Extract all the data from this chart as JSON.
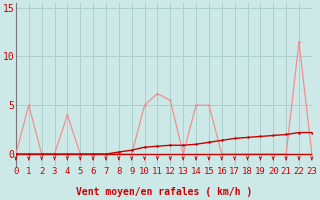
{
  "x": [
    0,
    1,
    2,
    3,
    4,
    5,
    6,
    7,
    8,
    9,
    10,
    11,
    12,
    13,
    14,
    15,
    16,
    17,
    18,
    19,
    20,
    21,
    22,
    23
  ],
  "rafales": [
    0,
    5,
    0,
    0,
    4,
    0,
    0,
    0,
    0,
    0,
    5,
    6.2,
    5.5,
    0,
    5,
    5,
    0,
    0,
    0,
    0,
    0,
    0,
    11.5,
    0
  ],
  "moyen": [
    0,
    0,
    0,
    0,
    0,
    0,
    0,
    0,
    0.2,
    0.4,
    0.7,
    0.8,
    0.9,
    0.9,
    1.0,
    1.2,
    1.4,
    1.6,
    1.7,
    1.8,
    1.9,
    2.0,
    2.2,
    2.2
  ],
  "bg_color": "#cce9e8",
  "grid_color": "#aad0ce",
  "line_color_rafales": "#f09090",
  "line_color_moyen": "#cc0000",
  "axis_line_color": "#cc0000",
  "tick_label_color": "#cc0000",
  "xlabel": "Vent moyen/en rafales ( km/h )",
  "xlabel_color": "#cc0000",
  "ylabel_ticks": [
    0,
    5,
    10,
    15
  ],
  "xlim": [
    0,
    23
  ],
  "ylim": [
    0,
    15
  ],
  "xlabel_fontsize": 7,
  "tick_fontsize": 6.5
}
